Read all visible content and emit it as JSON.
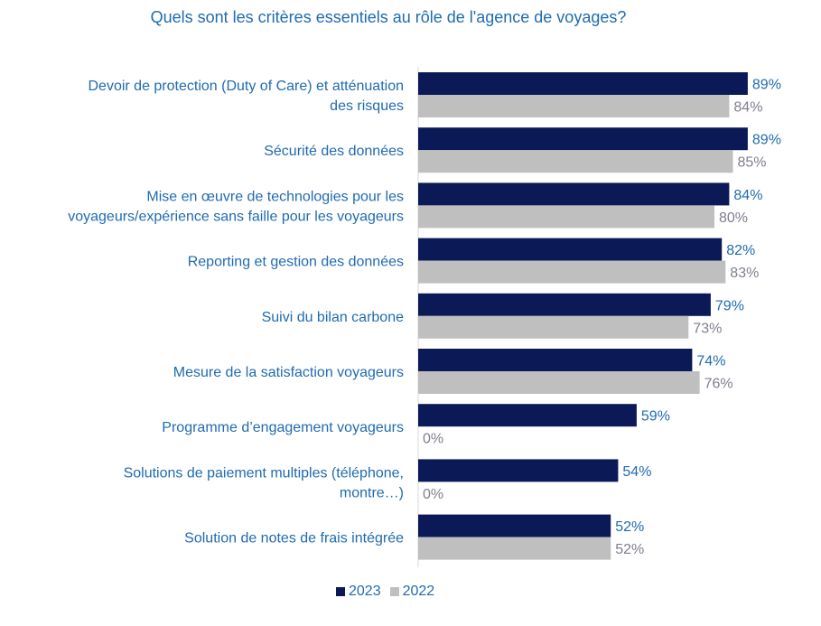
{
  "chart_data": {
    "type": "bar",
    "orientation": "horizontal",
    "title": "Quels sont les critères essentiels au rôle de l'agence de voyages?",
    "categories": [
      [
        "Devoir de protection (Duty of Care) et atténuation",
        "des risques"
      ],
      [
        "Sécurité des données"
      ],
      [
        "Mise en œuvre de technologies pour les",
        "voyageurs/expérience sans faille pour les voyageurs"
      ],
      [
        "Reporting et gestion des données"
      ],
      [
        "Suivi du bilan carbone"
      ],
      [
        "Mesure de la satisfaction voyageurs"
      ],
      [
        "Programme d’engagement voyageurs"
      ],
      [
        "Solutions de paiement multiples (téléphone,",
        "montre…)"
      ],
      [
        "Solution de notes de frais intégrée"
      ]
    ],
    "series": [
      {
        "name": "2023",
        "color": "#0B1A57",
        "label_color": "#1F6BB0",
        "values": [
          89,
          89,
          84,
          82,
          79,
          74,
          59,
          54,
          52
        ],
        "labels": [
          "89%",
          "89%",
          "84%",
          "82%",
          "79%",
          "74%",
          "59%",
          "54%",
          "52%"
        ]
      },
      {
        "name": "2022",
        "color": "#BFBFBF",
        "label_color": "#7F7F8F",
        "values": [
          84,
          85,
          80,
          83,
          73,
          76,
          0,
          0,
          52
        ],
        "labels": [
          "84%",
          "85%",
          "80%",
          "83%",
          "73%",
          "76%",
          "0%",
          "0%",
          "52%"
        ]
      }
    ],
    "xlim": [
      0,
      100
    ],
    "grid": false,
    "legend_position": "bottom"
  }
}
